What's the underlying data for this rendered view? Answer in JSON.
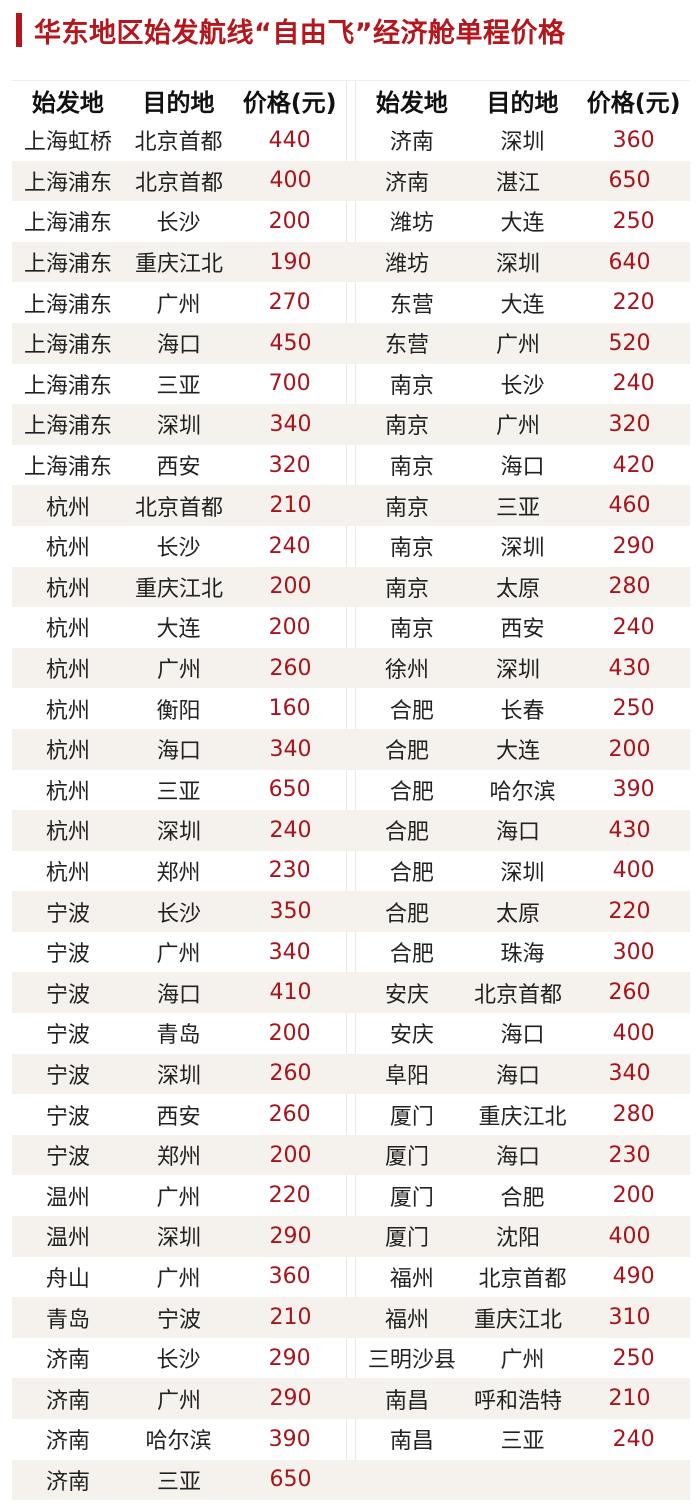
{
  "title": "华东地区始发航线“自由飞”经济舱单程价格",
  "colors": {
    "accent": "#b5161c",
    "alt_row": "#f5f1ec"
  },
  "headers": [
    "始发地",
    "目的地",
    "价格(元)"
  ],
  "left": [
    [
      "上海虹桥",
      "北京首都",
      "440"
    ],
    [
      "上海浦东",
      "北京首都",
      "400"
    ],
    [
      "上海浦东",
      "长沙",
      "200"
    ],
    [
      "上海浦东",
      "重庆江北",
      "190"
    ],
    [
      "上海浦东",
      "广州",
      "270"
    ],
    [
      "上海浦东",
      "海口",
      "450"
    ],
    [
      "上海浦东",
      "三亚",
      "700"
    ],
    [
      "上海浦东",
      "深圳",
      "340"
    ],
    [
      "上海浦东",
      "西安",
      "320"
    ],
    [
      "杭州",
      "北京首都",
      "210"
    ],
    [
      "杭州",
      "长沙",
      "240"
    ],
    [
      "杭州",
      "重庆江北",
      "200"
    ],
    [
      "杭州",
      "大连",
      "200"
    ],
    [
      "杭州",
      "广州",
      "260"
    ],
    [
      "杭州",
      "衡阳",
      "160"
    ],
    [
      "杭州",
      "海口",
      "340"
    ],
    [
      "杭州",
      "三亚",
      "650"
    ],
    [
      "杭州",
      "深圳",
      "240"
    ],
    [
      "杭州",
      "郑州",
      "230"
    ],
    [
      "宁波",
      "长沙",
      "350"
    ],
    [
      "宁波",
      "广州",
      "340"
    ],
    [
      "宁波",
      "海口",
      "410"
    ],
    [
      "宁波",
      "青岛",
      "200"
    ],
    [
      "宁波",
      "深圳",
      "260"
    ],
    [
      "宁波",
      "西安",
      "260"
    ],
    [
      "宁波",
      "郑州",
      "200"
    ],
    [
      "温州",
      "广州",
      "220"
    ],
    [
      "温州",
      "深圳",
      "290"
    ],
    [
      "舟山",
      "广州",
      "360"
    ],
    [
      "青岛",
      "宁波",
      "210"
    ],
    [
      "济南",
      "长沙",
      "290"
    ],
    [
      "济南",
      "广州",
      "290"
    ],
    [
      "济南",
      "哈尔滨",
      "390"
    ],
    [
      "济南",
      "三亚",
      "650"
    ]
  ],
  "right": [
    [
      "济南",
      "深圳",
      "360"
    ],
    [
      "济南",
      "湛江",
      "650"
    ],
    [
      "潍坊",
      "大连",
      "250"
    ],
    [
      "潍坊",
      "深圳",
      "640"
    ],
    [
      "东营",
      "大连",
      "220"
    ],
    [
      "东营",
      "广州",
      "520"
    ],
    [
      "南京",
      "长沙",
      "240"
    ],
    [
      "南京",
      "广州",
      "320"
    ],
    [
      "南京",
      "海口",
      "420"
    ],
    [
      "南京",
      "三亚",
      "460"
    ],
    [
      "南京",
      "深圳",
      "290"
    ],
    [
      "南京",
      "太原",
      "280"
    ],
    [
      "南京",
      "西安",
      "240"
    ],
    [
      "徐州",
      "深圳",
      "430"
    ],
    [
      "合肥",
      "长春",
      "250"
    ],
    [
      "合肥",
      "大连",
      "200"
    ],
    [
      "合肥",
      "哈尔滨",
      "390"
    ],
    [
      "合肥",
      "海口",
      "430"
    ],
    [
      "合肥",
      "深圳",
      "400"
    ],
    [
      "合肥",
      "太原",
      "220"
    ],
    [
      "合肥",
      "珠海",
      "300"
    ],
    [
      "安庆",
      "北京首都",
      "260"
    ],
    [
      "安庆",
      "海口",
      "400"
    ],
    [
      "阜阳",
      "海口",
      "340"
    ],
    [
      "厦门",
      "重庆江北",
      "280"
    ],
    [
      "厦门",
      "海口",
      "230"
    ],
    [
      "厦门",
      "合肥",
      "200"
    ],
    [
      "厦门",
      "沈阳",
      "400"
    ],
    [
      "福州",
      "北京首都",
      "490"
    ],
    [
      "福州",
      "重庆江北",
      "310"
    ],
    [
      "三明沙县",
      "广州",
      "250"
    ],
    [
      "南昌",
      "呼和浩特",
      "210"
    ],
    [
      "南昌",
      "三亚",
      "240"
    ]
  ]
}
